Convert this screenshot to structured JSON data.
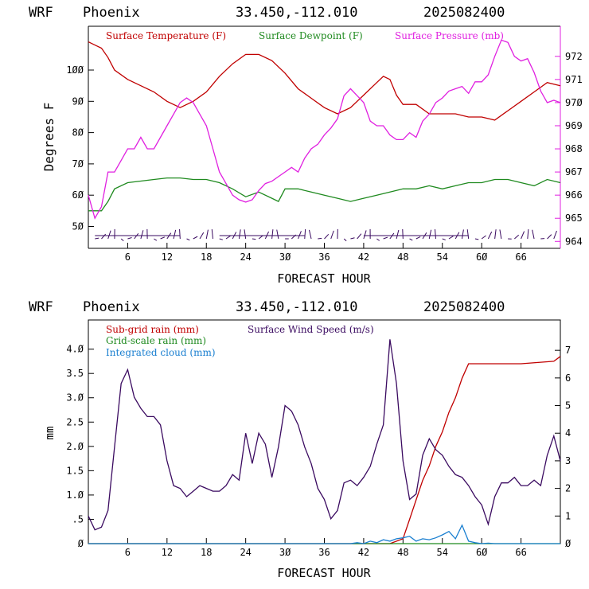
{
  "panels": [
    {
      "header": {
        "model": "WRF",
        "location": "Phoenix",
        "coords": "33.450,-112.010",
        "date": "2025082400"
      },
      "xlabel": "FORECAST HOUR",
      "ylabel_left": "Degrees F",
      "legend": [
        {
          "label": "Surface Temperature (F)",
          "color": "#c00000"
        },
        {
          "label": "Surface Dewpoint (F)",
          "color": "#1f8a1f"
        },
        {
          "label": "Surface Pressure (mb)",
          "color": "#e020e0"
        }
      ]
    },
    {
      "header": {
        "model": "WRF",
        "location": "Phoenix",
        "coords": "33.450,-112.010",
        "date": "2025082400"
      },
      "xlabel": "FORECAST HOUR",
      "ylabel_left": "mm",
      "legend": [
        {
          "label": "Sub-grid rain (mm)",
          "color": "#c00000"
        },
        {
          "label": "Surface Wind Speed (m/s)",
          "color": "#3a0a60"
        },
        {
          "label": "Grid-scale rain (mm)",
          "color": "#1f8a1f"
        },
        {
          "label": "Integrated cloud (mm)",
          "color": "#1a7fd0"
        }
      ]
    }
  ],
  "chart_data": [
    {
      "type": "line",
      "title": "WRF Phoenix 33.450,-112.010 2025082400",
      "xlabel": "FORECAST HOUR",
      "ylabel": "Degrees F",
      "xlim": [
        0,
        72
      ],
      "x_ticks": [
        6,
        12,
        18,
        24,
        30,
        36,
        42,
        48,
        54,
        60,
        66
      ],
      "ylim_left": [
        43,
        114
      ],
      "y_ticks_left": [
        50,
        60,
        70,
        80,
        90,
        100
      ],
      "ylim_right": [
        963.7,
        973.3
      ],
      "y_ticks_right": [
        964,
        965,
        966,
        967,
        968,
        969,
        970,
        971,
        972
      ],
      "grid": false,
      "series": [
        {
          "name": "Surface Temperature (F)",
          "axis": "left",
          "color": "#c00000",
          "x": [
            0,
            1,
            2,
            3,
            4,
            6,
            8,
            10,
            12,
            14,
            16,
            18,
            20,
            22,
            24,
            26,
            28,
            30,
            32,
            34,
            36,
            38,
            40,
            42,
            44,
            45,
            46,
            47,
            48,
            50,
            52,
            54,
            56,
            58,
            60,
            62,
            64,
            66,
            68,
            70,
            72
          ],
          "y": [
            109,
            108,
            107,
            104,
            100,
            97,
            95,
            93,
            90,
            88,
            90,
            93,
            98,
            102,
            105,
            105,
            103,
            99,
            94,
            91,
            88,
            86,
            88,
            92,
            96,
            98,
            97,
            92,
            89,
            89,
            86,
            86,
            86,
            85,
            85,
            84,
            87,
            90,
            93,
            96,
            95
          ]
        },
        {
          "name": "Surface Dewpoint (F)",
          "axis": "left",
          "color": "#1f8a1f",
          "x": [
            0,
            2,
            3,
            4,
            6,
            8,
            10,
            12,
            14,
            16,
            18,
            20,
            22,
            24,
            26,
            28,
            29,
            30,
            32,
            34,
            36,
            38,
            40,
            42,
            44,
            46,
            48,
            50,
            52,
            54,
            56,
            58,
            60,
            62,
            64,
            66,
            68,
            70,
            72
          ],
          "y": [
            55,
            55,
            58,
            62,
            64,
            64.5,
            65,
            65.5,
            65.5,
            65,
            65,
            64,
            62,
            59.5,
            61,
            59,
            58,
            62,
            62,
            61,
            60,
            59,
            58,
            59,
            60,
            61,
            62,
            62,
            63,
            62,
            63,
            64,
            64,
            65,
            65,
            64,
            63,
            65,
            64
          ]
        },
        {
          "name": "Surface Pressure (mb)",
          "axis": "right",
          "color": "#e020e0",
          "x": [
            0,
            1,
            2,
            3,
            4,
            5,
            6,
            7,
            8,
            9,
            10,
            11,
            12,
            13,
            14,
            15,
            16,
            17,
            18,
            19,
            20,
            21,
            22,
            23,
            24,
            25,
            26,
            27,
            28,
            29,
            30,
            31,
            32,
            33,
            34,
            35,
            36,
            37,
            38,
            39,
            40,
            41,
            42,
            43,
            44,
            45,
            46,
            47,
            48,
            49,
            50,
            51,
            52,
            53,
            54,
            55,
            56,
            57,
            58,
            59,
            60,
            61,
            62,
            63,
            64,
            65,
            66,
            67,
            68,
            69,
            70,
            71,
            72
          ],
          "y": [
            966,
            965,
            965.5,
            967,
            967,
            967.5,
            968,
            968,
            968.5,
            968,
            968,
            968.5,
            969,
            969.5,
            970,
            970.2,
            970,
            969.5,
            969,
            968,
            967,
            966.5,
            966,
            965.8,
            965.7,
            965.8,
            966.2,
            966.5,
            966.6,
            966.8,
            967,
            967.2,
            967,
            967.6,
            968,
            968.2,
            968.6,
            968.9,
            969.3,
            970.3,
            970.6,
            970.3,
            970,
            969.2,
            969,
            969,
            968.6,
            968.4,
            968.4,
            968.7,
            968.5,
            969.2,
            969.5,
            970,
            970.2,
            970.5,
            970.6,
            970.7,
            970.4,
            970.9,
            970.9,
            971.2,
            972,
            972.7,
            972.6,
            972,
            971.8,
            971.9,
            971.3,
            970.5,
            970,
            970.1,
            970
          ]
        }
      ],
      "wind_barbs": "row of wind barbs along the bottom of the panel"
    },
    {
      "type": "line",
      "title": "WRF Phoenix 33.450,-112.010 2025082400",
      "xlabel": "FORECAST HOUR",
      "ylabel": "mm",
      "xlim": [
        0,
        72
      ],
      "x_ticks": [
        6,
        12,
        18,
        24,
        30,
        36,
        42,
        48,
        54,
        60,
        66
      ],
      "ylim_left": [
        0,
        4.6
      ],
      "y_ticks_left": [
        0,
        0.5,
        1.0,
        1.5,
        2.0,
        2.5,
        3.0,
        3.5,
        4.0
      ],
      "y_tick_labels_left": [
        "0",
        ".5",
        "1.0",
        "1.5",
        "2.0",
        "2.5",
        "3.0",
        "3.5",
        "4.0"
      ],
      "ylim_right": [
        0,
        8.1
      ],
      "y_ticks_right": [
        0,
        1,
        2,
        3,
        4,
        5,
        6,
        7
      ],
      "grid": false,
      "series": [
        {
          "name": "Sub-grid rain (mm)",
          "axis": "left",
          "color": "#c00000",
          "x": [
            0,
            46,
            48,
            49,
            50,
            51,
            52,
            53,
            54,
            55,
            56,
            57,
            58,
            66,
            71,
            72
          ],
          "y": [
            0,
            0,
            0.1,
            0.5,
            0.9,
            1.3,
            1.6,
            2.0,
            2.3,
            2.7,
            3.0,
            3.4,
            3.7,
            3.7,
            3.75,
            3.85
          ]
        },
        {
          "name": "Surface Wind Speed (m/s)",
          "axis": "right",
          "color": "#3a0a60",
          "x": [
            0,
            1,
            2,
            3,
            4,
            5,
            6,
            7,
            8,
            9,
            10,
            11,
            12,
            13,
            14,
            15,
            16,
            17,
            18,
            19,
            20,
            21,
            22,
            23,
            24,
            25,
            26,
            27,
            28,
            29,
            30,
            31,
            32,
            33,
            34,
            35,
            36,
            37,
            38,
            39,
            40,
            41,
            42,
            43,
            44,
            45,
            46,
            47,
            48,
            49,
            50,
            51,
            52,
            53,
            54,
            55,
            56,
            57,
            58,
            59,
            60,
            61,
            62,
            63,
            64,
            65,
            66,
            67,
            68,
            69,
            70,
            71,
            72
          ],
          "y": [
            1,
            0.5,
            0.6,
            1.2,
            3.5,
            5.8,
            6.3,
            5.3,
            4.9,
            4.6,
            4.6,
            4.3,
            3,
            2.1,
            2,
            1.7,
            1.9,
            2.1,
            2,
            1.9,
            1.9,
            2.1,
            2.5,
            2.3,
            4,
            2.9,
            4,
            3.6,
            2.4,
            3.5,
            5,
            4.8,
            4.3,
            3.5,
            2.9,
            2,
            1.6,
            0.9,
            1.2,
            2.2,
            2.3,
            2.1,
            2.4,
            2.8,
            3.6,
            4.3,
            7.4,
            5.8,
            3,
            1.6,
            1.8,
            3.2,
            3.8,
            3.4,
            3.2,
            2.8,
            2.5,
            2.4,
            2.1,
            1.7,
            1.4,
            0.7,
            1.7,
            2.2,
            2.2,
            2.4,
            2.1,
            2.1,
            2.3,
            2.1,
            3.2,
            3.9,
            3.0
          ]
        },
        {
          "name": "Grid-scale rain (mm)",
          "axis": "left",
          "color": "#1f8a1f",
          "x": [
            0,
            72
          ],
          "y": [
            0,
            0
          ]
        },
        {
          "name": "Integrated cloud (mm)",
          "axis": "left",
          "color": "#1a7fd0",
          "x": [
            0,
            40,
            41,
            42,
            43,
            44,
            45,
            46,
            47,
            48,
            49,
            50,
            51,
            52,
            53,
            54,
            55,
            56,
            57,
            58,
            59,
            60,
            61,
            62,
            72
          ],
          "y": [
            0,
            0,
            0.02,
            0,
            0.05,
            0.02,
            0.08,
            0.05,
            0.1,
            0.12,
            0.15,
            0.05,
            0.1,
            0.08,
            0.12,
            0.18,
            0.25,
            0.1,
            0.38,
            0.05,
            0.02,
            0,
            0.01,
            0,
            0
          ]
        }
      ]
    }
  ]
}
